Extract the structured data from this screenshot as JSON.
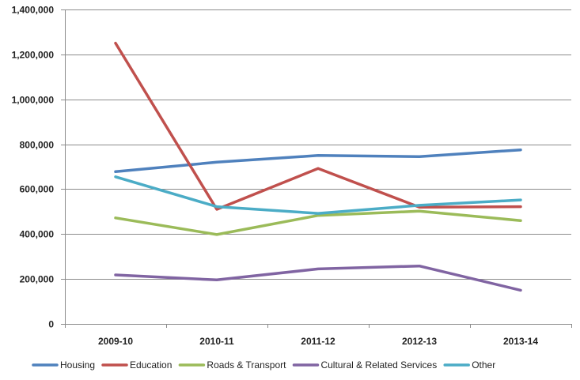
{
  "chart_data": {
    "type": "line",
    "title": "",
    "xlabel": "",
    "ylabel": "",
    "categories": [
      "2009-10",
      "2010-11",
      "2011-12",
      "2012-13",
      "2013-14"
    ],
    "ylim": [
      0,
      1400000
    ],
    "yticks": [
      0,
      200000,
      400000,
      600000,
      800000,
      1000000,
      1200000,
      1400000
    ],
    "ytick_labels": [
      "0",
      "200,000",
      "400,000",
      "600,000",
      "800,000",
      "1,000,000",
      "1,200,000",
      "1,400,000"
    ],
    "grid": "horizontal",
    "legend_position": "bottom",
    "series": [
      {
        "name": "Housing",
        "color": "#4F81BD",
        "values": [
          678000,
          720000,
          750000,
          745000,
          775000
        ]
      },
      {
        "name": "Education",
        "color": "#C0504D",
        "values": [
          1250000,
          510000,
          692000,
          520000,
          522000
        ]
      },
      {
        "name": "Roads & Transport",
        "color": "#9BBB59",
        "values": [
          472000,
          398000,
          483000,
          502000,
          460000
        ]
      },
      {
        "name": "Cultural & Related Services",
        "color": "#8064A2",
        "values": [
          218000,
          196000,
          245000,
          258000,
          150000
        ]
      },
      {
        "name": "Other",
        "color": "#4BACC6",
        "values": [
          655000,
          522000,
          492000,
          528000,
          552000
        ]
      }
    ]
  }
}
